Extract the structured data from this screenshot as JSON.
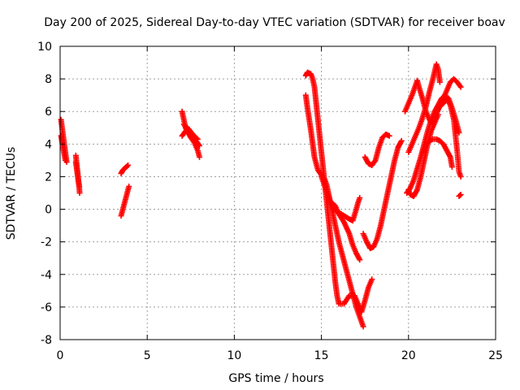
{
  "chart_data": {
    "type": "scatter",
    "title": "Day 200 of 2025, Sidereal Day-to-day VTEC variation (SDTVAR) for receiver boav",
    "xlabel": "GPS time / hours",
    "ylabel": "SDTVAR / TECUs",
    "xlim": [
      0,
      25
    ],
    "ylim": [
      -8,
      10
    ],
    "xticks": [
      0,
      5,
      10,
      15,
      20,
      25
    ],
    "yticks": [
      -8,
      -6,
      -4,
      -2,
      0,
      2,
      4,
      6,
      8,
      10
    ],
    "grid": true,
    "marker": "plus",
    "color": "#ff0000",
    "series": [
      {
        "name": "SDTVAR",
        "tracks": [
          [
            [
              0.05,
              5.5
            ],
            [
              0.1,
              5.1
            ],
            [
              0.15,
              4.7
            ],
            [
              0.2,
              4.3
            ],
            [
              0.25,
              3.9
            ],
            [
              0.3,
              3.5
            ],
            [
              0.35,
              3.1
            ],
            [
              0.38,
              2.9
            ]
          ],
          [
            [
              0.05,
              4.5
            ],
            [
              0.1,
              4.2
            ],
            [
              0.15,
              3.9
            ],
            [
              0.2,
              3.6
            ],
            [
              0.25,
              3.3
            ],
            [
              0.3,
              3.0
            ]
          ],
          [
            [
              0.9,
              3.3
            ],
            [
              0.95,
              2.8
            ],
            [
              1.0,
              2.3
            ],
            [
              1.05,
              1.8
            ],
            [
              1.1,
              1.3
            ],
            [
              1.12,
              1.0
            ]
          ],
          [
            [
              0.9,
              2.9
            ],
            [
              0.95,
              2.5
            ],
            [
              1.0,
              2.1
            ],
            [
              1.05,
              1.7
            ],
            [
              1.1,
              1.4
            ]
          ],
          [
            [
              3.5,
              -0.4
            ],
            [
              3.6,
              0.0
            ],
            [
              3.7,
              0.4
            ],
            [
              3.8,
              0.8
            ],
            [
              3.9,
              1.2
            ],
            [
              3.95,
              1.4
            ]
          ],
          [
            [
              3.5,
              2.2
            ],
            [
              3.6,
              2.4
            ],
            [
              3.7,
              2.5
            ],
            [
              3.8,
              2.6
            ],
            [
              3.9,
              2.7
            ]
          ],
          [
            [
              7.0,
              6.0
            ],
            [
              7.1,
              5.5
            ],
            [
              7.2,
              5.0
            ],
            [
              7.35,
              4.7
            ],
            [
              7.5,
              4.4
            ],
            [
              7.7,
              4.1
            ],
            [
              7.9,
              3.6
            ],
            [
              8.0,
              3.2
            ]
          ],
          [
            [
              7.0,
              4.5
            ],
            [
              7.2,
              4.8
            ],
            [
              7.4,
              4.9
            ],
            [
              7.6,
              4.6
            ],
            [
              7.8,
              4.2
            ],
            [
              8.0,
              3.9
            ]
          ],
          [
            [
              7.1,
              5.2
            ],
            [
              7.3,
              5.0
            ],
            [
              7.5,
              4.7
            ],
            [
              7.7,
              4.5
            ],
            [
              7.9,
              4.3
            ]
          ],
          [
            [
              14.1,
              8.2
            ],
            [
              14.2,
              8.4
            ],
            [
              14.4,
              8.3
            ],
            [
              14.5,
              8.0
            ],
            [
              14.6,
              7.5
            ],
            [
              14.7,
              6.5
            ],
            [
              14.8,
              5.5
            ],
            [
              14.9,
              4.5
            ],
            [
              15.0,
              3.5
            ],
            [
              15.1,
              2.5
            ],
            [
              15.2,
              1.5
            ],
            [
              15.3,
              0.5
            ],
            [
              15.4,
              -0.5
            ],
            [
              15.5,
              -1.5
            ],
            [
              15.6,
              -2.5
            ],
            [
              15.7,
              -3.5
            ],
            [
              15.8,
              -4.5
            ],
            [
              15.9,
              -5.3
            ],
            [
              16.0,
              -5.8
            ],
            [
              16.3,
              -5.8
            ],
            [
              16.6,
              -5.3
            ],
            [
              16.9,
              -5.3
            ],
            [
              17.1,
              -5.8
            ],
            [
              17.3,
              -6.3
            ],
            [
              17.5,
              -5.6
            ],
            [
              17.7,
              -4.8
            ],
            [
              17.9,
              -4.3
            ]
          ],
          [
            [
              14.1,
              7.0
            ],
            [
              14.2,
              6.2
            ],
            [
              14.3,
              5.5
            ],
            [
              14.4,
              4.8
            ],
            [
              14.5,
              4.0
            ],
            [
              14.6,
              3.2
            ],
            [
              14.7,
              2.8
            ],
            [
              14.8,
              2.4
            ],
            [
              15.0,
              2.1
            ],
            [
              15.2,
              1.8
            ],
            [
              15.3,
              1.5
            ],
            [
              15.4,
              1.0
            ],
            [
              15.5,
              0.5
            ],
            [
              15.7,
              0.0
            ],
            [
              16.0,
              -0.2
            ],
            [
              16.3,
              -0.4
            ],
            [
              16.6,
              -0.6
            ],
            [
              16.8,
              -0.7
            ],
            [
              17.0,
              0.0
            ],
            [
              17.1,
              0.4
            ],
            [
              17.2,
              0.7
            ]
          ],
          [
            [
              15.0,
              2.0
            ],
            [
              15.2,
              1.4
            ],
            [
              15.4,
              0.8
            ],
            [
              15.6,
              0.0
            ],
            [
              15.8,
              -1.0
            ],
            [
              16.0,
              -2.0
            ],
            [
              16.2,
              -2.8
            ],
            [
              16.4,
              -3.6
            ],
            [
              16.6,
              -4.4
            ],
            [
              16.8,
              -5.2
            ],
            [
              17.0,
              -6.0
            ],
            [
              17.2,
              -6.6
            ],
            [
              17.4,
              -7.2
            ]
          ],
          [
            [
              15.5,
              0.5
            ],
            [
              15.8,
              0.2
            ],
            [
              16.0,
              -0.3
            ],
            [
              16.3,
              -0.8
            ],
            [
              16.6,
              -1.5
            ],
            [
              16.8,
              -2.2
            ],
            [
              17.0,
              -2.7
            ],
            [
              17.2,
              -3.1
            ]
          ],
          [
            [
              17.5,
              3.2
            ],
            [
              17.7,
              2.8
            ],
            [
              17.9,
              2.7
            ],
            [
              18.1,
              3.0
            ],
            [
              18.3,
              3.8
            ],
            [
              18.5,
              4.4
            ],
            [
              18.7,
              4.6
            ],
            [
              18.9,
              4.5
            ]
          ],
          [
            [
              17.4,
              -1.5
            ],
            [
              17.6,
              -2.0
            ],
            [
              17.8,
              -2.4
            ],
            [
              18.0,
              -2.3
            ],
            [
              18.2,
              -1.8
            ],
            [
              18.4,
              -1.0
            ],
            [
              18.6,
              0.0
            ],
            [
              18.8,
              1.0
            ],
            [
              19.0,
              2.0
            ],
            [
              19.2,
              3.0
            ],
            [
              19.4,
              3.8
            ],
            [
              19.6,
              4.2
            ]
          ],
          [
            [
              19.8,
              6.0
            ],
            [
              20.0,
              6.5
            ],
            [
              20.2,
              7.0
            ],
            [
              20.4,
              7.6
            ],
            [
              20.5,
              7.9
            ],
            [
              20.6,
              7.5
            ],
            [
              20.8,
              6.8
            ],
            [
              21.0,
              6.0
            ],
            [
              21.2,
              5.5
            ],
            [
              21.4,
              5.2
            ],
            [
              21.6,
              5.8
            ],
            [
              21.8,
              6.4
            ],
            [
              22.0,
              6.8
            ],
            [
              22.2,
              7.3
            ],
            [
              22.4,
              7.8
            ],
            [
              22.6,
              8.0
            ],
            [
              22.8,
              7.8
            ],
            [
              23.0,
              7.5
            ]
          ],
          [
            [
              19.9,
              1.0
            ],
            [
              20.1,
              1.3
            ],
            [
              20.3,
              1.8
            ],
            [
              20.5,
              2.5
            ],
            [
              20.7,
              3.2
            ],
            [
              20.9,
              4.0
            ],
            [
              21.1,
              4.8
            ],
            [
              21.3,
              5.5
            ],
            [
              21.5,
              6.0
            ],
            [
              21.7,
              6.4
            ],
            [
              21.9,
              6.8
            ],
            [
              22.1,
              7.0
            ],
            [
              22.3,
              6.8
            ],
            [
              22.5,
              6.2
            ],
            [
              22.7,
              5.5
            ],
            [
              22.9,
              4.7
            ]
          ],
          [
            [
              20.0,
              3.5
            ],
            [
              20.2,
              4.0
            ],
            [
              20.4,
              4.5
            ],
            [
              20.6,
              5.0
            ],
            [
              20.8,
              5.6
            ],
            [
              21.0,
              6.3
            ],
            [
              21.2,
              7.2
            ],
            [
              21.4,
              8.0
            ],
            [
              21.6,
              8.9
            ],
            [
              21.7,
              8.6
            ],
            [
              21.8,
              7.8
            ]
          ],
          [
            [
              20.8,
              3.5
            ],
            [
              21.0,
              4.0
            ],
            [
              21.2,
              4.2
            ],
            [
              21.4,
              4.3
            ],
            [
              21.6,
              4.3
            ],
            [
              21.8,
              4.2
            ],
            [
              22.0,
              4.0
            ],
            [
              22.2,
              3.6
            ],
            [
              22.4,
              3.2
            ],
            [
              22.5,
              2.6
            ]
          ],
          [
            [
              21.6,
              6.0
            ],
            [
              21.8,
              6.3
            ],
            [
              22.0,
              6.5
            ],
            [
              22.2,
              6.8
            ],
            [
              22.4,
              6.4
            ],
            [
              22.6,
              5.5
            ],
            [
              22.8,
              3.5
            ],
            [
              22.9,
              2.3
            ],
            [
              23.0,
              2.0
            ]
          ],
          [
            [
              20.0,
              1.2
            ],
            [
              20.1,
              0.9
            ],
            [
              20.3,
              0.8
            ],
            [
              20.5,
              1.2
            ],
            [
              20.7,
              2.0
            ],
            [
              20.9,
              3.0
            ],
            [
              21.1,
              4.0
            ],
            [
              21.3,
              4.8
            ],
            [
              21.5,
              5.3
            ],
            [
              21.7,
              5.8
            ]
          ],
          [
            [
              22.9,
              0.8
            ],
            [
              23.0,
              0.9
            ]
          ]
        ]
      }
    ]
  }
}
